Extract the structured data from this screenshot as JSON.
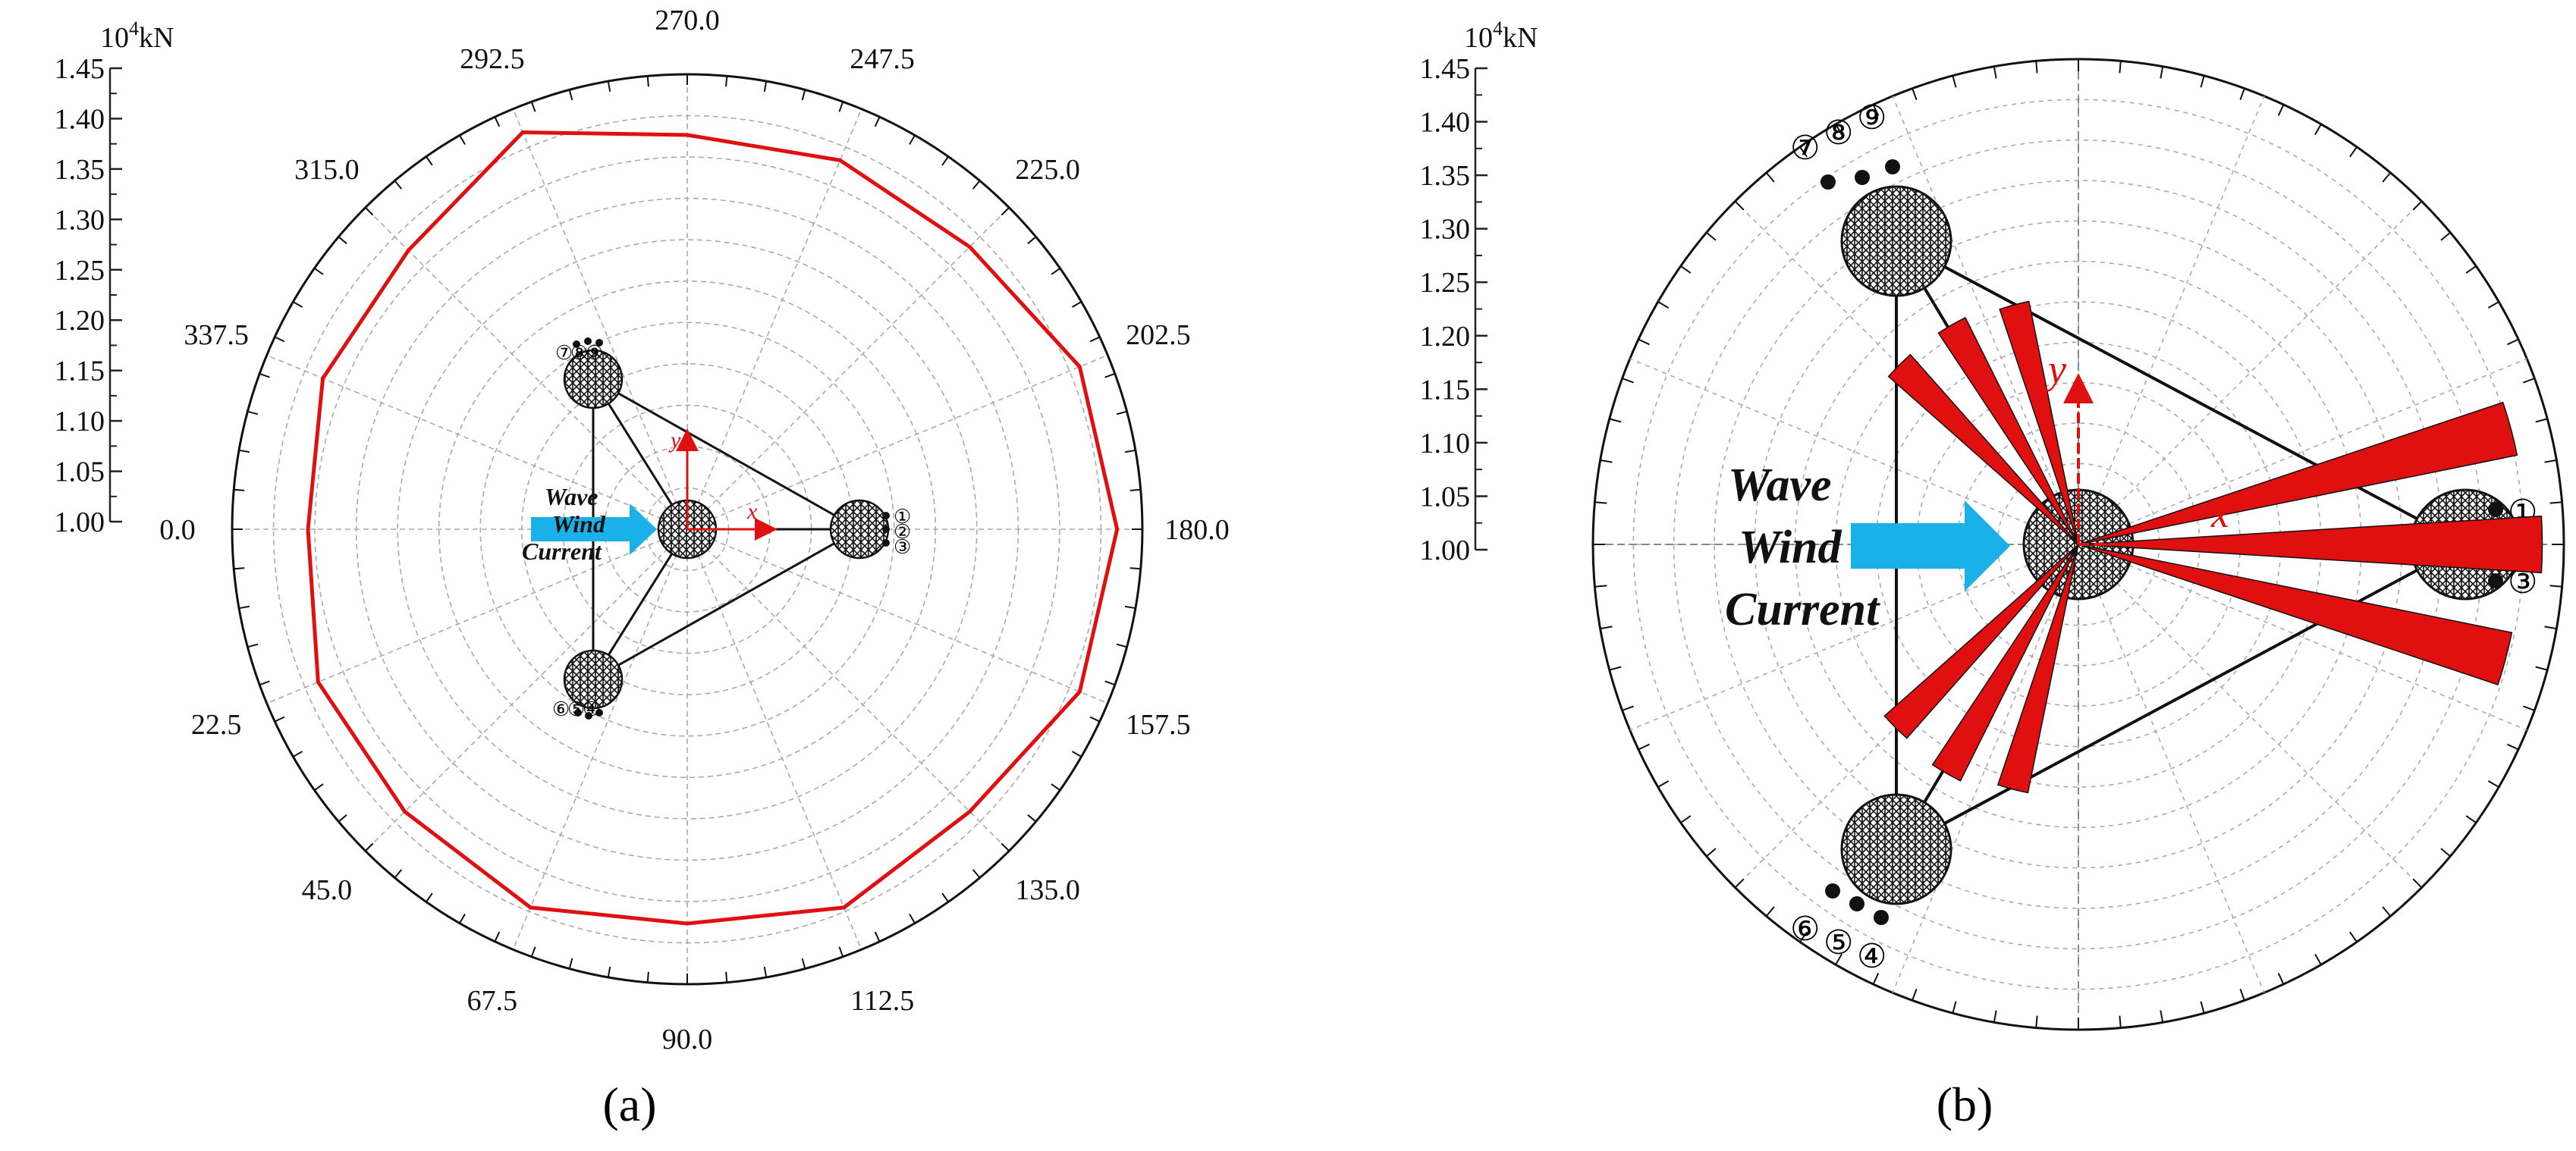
{
  "panels": [
    {
      "label": "(a)",
      "unit": "10⁴kN",
      "chart_data": {
        "type": "line",
        "polar": true,
        "radial_axis": {
          "min": 1.0,
          "max": 1.45,
          "ticks": [
            "1.00",
            "1.05",
            "1.10",
            "1.15",
            "1.20",
            "1.25",
            "1.30",
            "1.35",
            "1.40",
            "1.45"
          ]
        },
        "angle_labels": [
          "0.0",
          "22.5",
          "45.0",
          "67.5",
          "90.0",
          "112.5",
          "135.0",
          "157.5",
          "180.0",
          "202.5",
          "225.0",
          "247.5",
          "270.0",
          "292.5",
          "315.0",
          "337.5"
        ],
        "theta": [
          0,
          22.5,
          45,
          67.5,
          90,
          112.5,
          135,
          157.5,
          180,
          202.5,
          225,
          247.5,
          270,
          292.5,
          315,
          337.5
        ],
        "values": [
          1.375,
          1.395,
          1.395,
          1.405,
          1.39,
          1.405,
          1.395,
          1.42,
          1.425,
          1.42,
          1.395,
          1.395,
          1.39,
          1.425,
          1.39,
          1.39
        ],
        "series_color": "#e01010",
        "grid": true
      },
      "flow_labels": [
        "Wave",
        "Wind",
        "Current"
      ],
      "axis_labels": {
        "x": "x",
        "y": "y"
      },
      "mooring_labels": {
        "right": [
          "①",
          "②",
          "③"
        ],
        "top": [
          "⑦",
          "⑧",
          "⑨"
        ],
        "bottom": [
          "⑥",
          "⑤",
          "④"
        ]
      }
    },
    {
      "label": "(b)",
      "unit": "10⁴kN",
      "chart_data": {
        "type": "bar",
        "polar": true,
        "radial_axis": {
          "min": 1.0,
          "max": 1.45,
          "ticks": [
            "1.00",
            "1.05",
            "1.10",
            "1.15",
            "1.20",
            "1.25",
            "1.30",
            "1.35",
            "1.40",
            "1.45"
          ]
        },
        "bars": [
          {
            "theta": 345,
            "width": 7,
            "value": 1.41
          },
          {
            "theta": 0,
            "width": 7,
            "value": 1.43
          },
          {
            "theta": 15,
            "width": 7,
            "value": 1.415
          },
          {
            "theta": 105,
            "width": 7,
            "value": 1.23
          },
          {
            "theta": 120,
            "width": 7,
            "value": 1.235
          },
          {
            "theta": 135,
            "width": 7,
            "value": 1.235
          },
          {
            "theta": 225,
            "width": 7,
            "value": 1.24
          },
          {
            "theta": 240,
            "width": 7,
            "value": 1.245
          },
          {
            "theta": 255,
            "width": 7,
            "value": 1.235
          }
        ],
        "series_color": "#e01010",
        "grid": true
      },
      "flow_labels": [
        "Wave",
        "Wind",
        "Current"
      ],
      "axis_labels": {
        "x": "x",
        "y": "y"
      },
      "mooring_labels": {
        "right": [
          "①",
          "②",
          "③"
        ],
        "top": [
          "⑦",
          "⑧",
          "⑨"
        ],
        "bottom": [
          "⑥",
          "⑤",
          "④"
        ]
      }
    }
  ]
}
